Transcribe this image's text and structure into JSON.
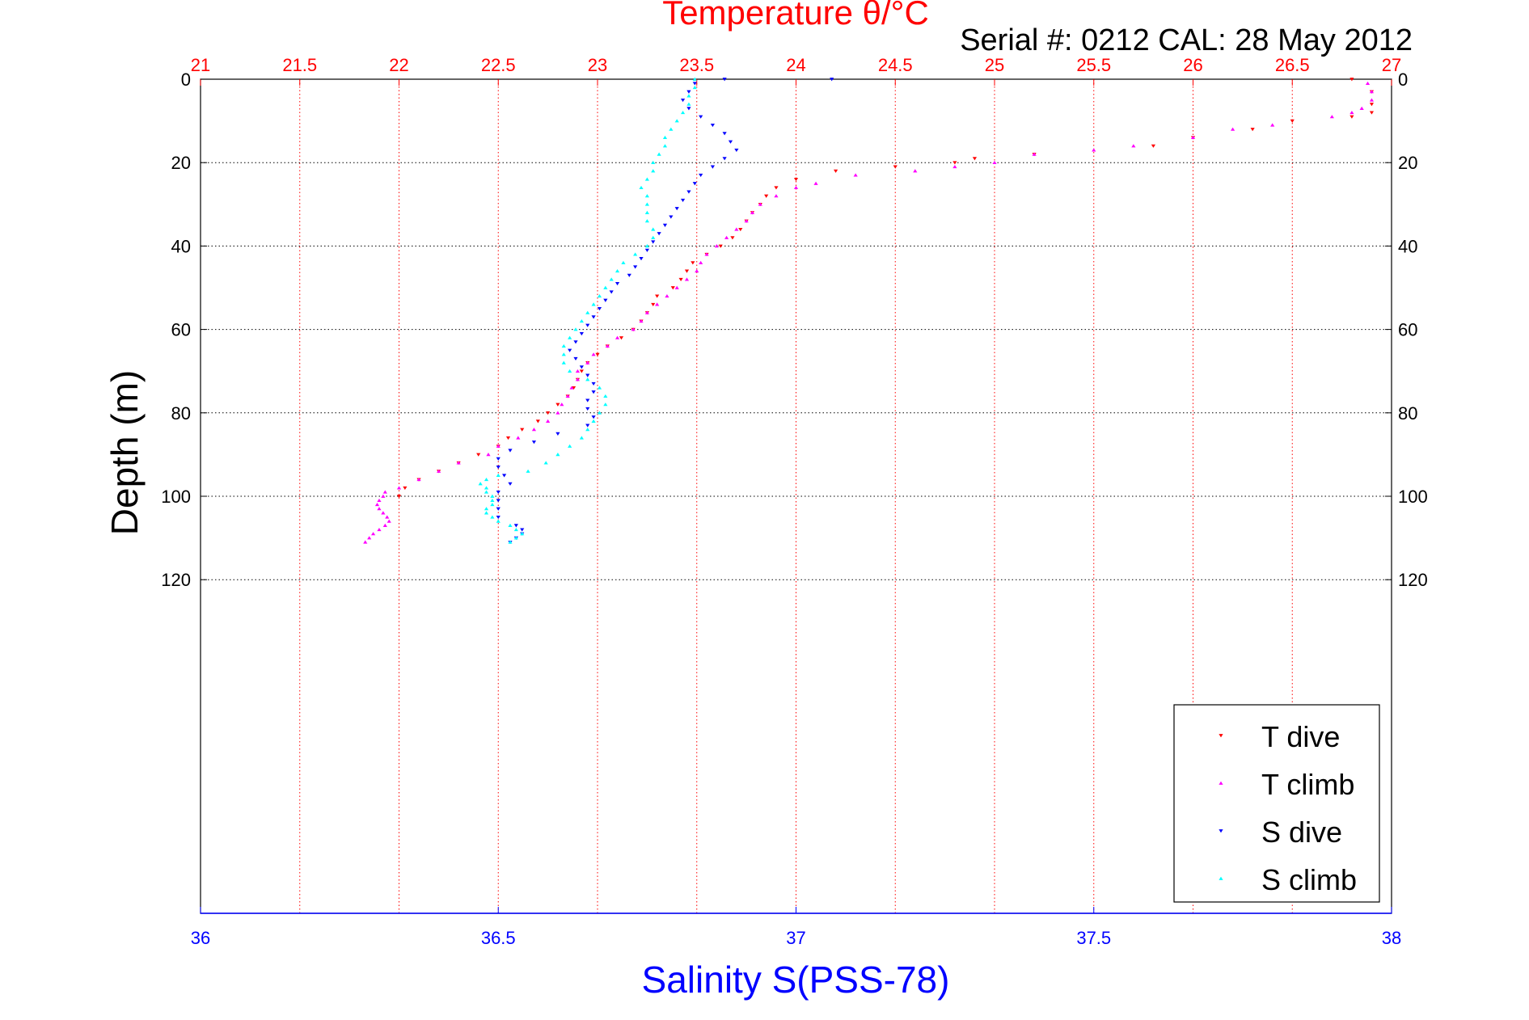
{
  "chart_data": {
    "type": "scatter",
    "title_top": "Temperature θ/°C",
    "subtitle": "Serial #: 0212  CAL: 28 May 2012",
    "xlabel_bottom": "Salinity S(PSS-78)",
    "ylabel": "Depth (m)",
    "x_top": {
      "min": 21,
      "max": 27,
      "ticks": [
        "21",
        "21.5",
        "22",
        "22.5",
        "23",
        "23.5",
        "24",
        "24.5",
        "25",
        "25.5",
        "26",
        "26.5",
        "27"
      ]
    },
    "x_bottom": {
      "min": 36,
      "max": 38,
      "ticks": [
        "36",
        "36.5",
        "37",
        "37.5",
        "38"
      ]
    },
    "y": {
      "min": 0,
      "max": 200,
      "reversed": true,
      "ticks": [
        "0",
        "20",
        "40",
        "60",
        "80",
        "100",
        "120"
      ]
    },
    "grid": "dotted",
    "legend_position": "bottom-right",
    "series": [
      {
        "name": "T dive",
        "axis": "top",
        "color": "#ff0000",
        "marker": "triangle-down",
        "points": [
          [
            26.8,
            0
          ],
          [
            26.9,
            3
          ],
          [
            26.9,
            6
          ],
          [
            26.9,
            8
          ],
          [
            26.8,
            9
          ],
          [
            26.5,
            10
          ],
          [
            26.3,
            12
          ],
          [
            26.0,
            14
          ],
          [
            25.8,
            16
          ],
          [
            25.2,
            18
          ],
          [
            24.9,
            19
          ],
          [
            24.8,
            20
          ],
          [
            24.5,
            21
          ],
          [
            24.2,
            22
          ],
          [
            24.0,
            24
          ],
          [
            23.9,
            26
          ],
          [
            23.85,
            28
          ],
          [
            23.82,
            30
          ],
          [
            23.78,
            32
          ],
          [
            23.75,
            34
          ],
          [
            23.72,
            36
          ],
          [
            23.68,
            38
          ],
          [
            23.62,
            40
          ],
          [
            23.55,
            42
          ],
          [
            23.48,
            44
          ],
          [
            23.45,
            46
          ],
          [
            23.42,
            48
          ],
          [
            23.38,
            50
          ],
          [
            23.3,
            52
          ],
          [
            23.28,
            54
          ],
          [
            23.25,
            56
          ],
          [
            23.22,
            58
          ],
          [
            23.18,
            60
          ],
          [
            23.12,
            62
          ],
          [
            23.05,
            64
          ],
          [
            23.0,
            66
          ],
          [
            22.95,
            68
          ],
          [
            22.92,
            70
          ],
          [
            22.9,
            72
          ],
          [
            22.88,
            74
          ],
          [
            22.85,
            76
          ],
          [
            22.8,
            78
          ],
          [
            22.75,
            80
          ],
          [
            22.7,
            82
          ],
          [
            22.62,
            84
          ],
          [
            22.55,
            86
          ],
          [
            22.5,
            88
          ],
          [
            22.4,
            90
          ],
          [
            22.3,
            92
          ],
          [
            22.2,
            94
          ],
          [
            22.1,
            96
          ],
          [
            22.03,
            98
          ],
          [
            22.0,
            100
          ]
        ]
      },
      {
        "name": "T climb",
        "axis": "top",
        "color": "#ff00ff",
        "marker": "triangle-up",
        "points": [
          [
            21.83,
            111
          ],
          [
            21.85,
            110
          ],
          [
            21.87,
            109
          ],
          [
            21.9,
            108
          ],
          [
            21.93,
            107
          ],
          [
            21.95,
            106
          ],
          [
            21.94,
            105
          ],
          [
            21.92,
            104
          ],
          [
            21.9,
            103
          ],
          [
            21.89,
            102
          ],
          [
            21.9,
            101
          ],
          [
            21.92,
            100
          ],
          [
            21.93,
            99
          ],
          [
            22.0,
            98
          ],
          [
            22.1,
            96
          ],
          [
            22.2,
            94
          ],
          [
            22.3,
            92
          ],
          [
            22.45,
            90
          ],
          [
            22.5,
            88
          ],
          [
            22.6,
            86
          ],
          [
            22.68,
            84
          ],
          [
            22.75,
            82
          ],
          [
            22.8,
            80
          ],
          [
            22.82,
            78
          ],
          [
            22.85,
            76
          ],
          [
            22.87,
            74
          ],
          [
            22.9,
            72
          ],
          [
            22.9,
            70
          ],
          [
            22.95,
            68
          ],
          [
            22.98,
            66
          ],
          [
            23.05,
            64
          ],
          [
            23.1,
            62
          ],
          [
            23.18,
            60
          ],
          [
            23.22,
            58
          ],
          [
            23.25,
            56
          ],
          [
            23.3,
            54
          ],
          [
            23.35,
            52
          ],
          [
            23.4,
            50
          ],
          [
            23.45,
            48
          ],
          [
            23.5,
            46
          ],
          [
            23.52,
            44
          ],
          [
            23.55,
            42
          ],
          [
            23.6,
            40
          ],
          [
            23.65,
            38
          ],
          [
            23.7,
            36
          ],
          [
            23.75,
            34
          ],
          [
            23.78,
            32
          ],
          [
            23.82,
            30
          ],
          [
            23.9,
            28
          ],
          [
            24.0,
            26
          ],
          [
            24.1,
            25
          ],
          [
            24.3,
            23
          ],
          [
            24.6,
            22
          ],
          [
            24.8,
            21
          ],
          [
            25.0,
            20
          ],
          [
            25.2,
            18
          ],
          [
            25.5,
            17
          ],
          [
            25.7,
            16
          ],
          [
            26.0,
            14
          ],
          [
            26.2,
            12
          ],
          [
            26.4,
            11
          ],
          [
            26.7,
            9
          ],
          [
            26.8,
            8
          ],
          [
            26.85,
            7
          ],
          [
            26.9,
            5
          ],
          [
            26.9,
            3
          ],
          [
            26.88,
            1
          ]
        ]
      },
      {
        "name": "S dive",
        "axis": "bottom",
        "color": "#0000ff",
        "marker": "triangle-down",
        "points": [
          [
            36.88,
            0
          ],
          [
            37.06,
            0
          ],
          [
            36.83,
            1
          ],
          [
            36.82,
            3
          ],
          [
            36.81,
            5
          ],
          [
            36.82,
            7
          ],
          [
            36.84,
            9
          ],
          [
            36.86,
            11
          ],
          [
            36.88,
            13
          ],
          [
            36.89,
            15
          ],
          [
            36.9,
            17
          ],
          [
            36.88,
            19
          ],
          [
            36.86,
            21
          ],
          [
            36.84,
            23
          ],
          [
            36.83,
            25
          ],
          [
            36.82,
            27
          ],
          [
            36.81,
            29
          ],
          [
            36.8,
            31
          ],
          [
            36.79,
            33
          ],
          [
            36.78,
            35
          ],
          [
            36.77,
            37
          ],
          [
            36.76,
            39
          ],
          [
            36.75,
            41
          ],
          [
            36.74,
            43
          ],
          [
            36.73,
            45
          ],
          [
            36.72,
            47
          ],
          [
            36.7,
            49
          ],
          [
            36.69,
            51
          ],
          [
            36.68,
            53
          ],
          [
            36.67,
            55
          ],
          [
            36.66,
            57
          ],
          [
            36.65,
            59
          ],
          [
            36.64,
            61
          ],
          [
            36.63,
            63
          ],
          [
            36.62,
            65
          ],
          [
            36.63,
            67
          ],
          [
            36.64,
            69
          ],
          [
            36.65,
            71
          ],
          [
            36.66,
            73
          ],
          [
            36.66,
            75
          ],
          [
            36.65,
            77
          ],
          [
            36.65,
            79
          ],
          [
            36.66,
            81
          ],
          [
            36.65,
            83
          ],
          [
            36.6,
            85
          ],
          [
            36.56,
            87
          ],
          [
            36.52,
            89
          ],
          [
            36.5,
            91
          ],
          [
            36.5,
            93
          ],
          [
            36.51,
            95
          ],
          [
            36.52,
            97
          ],
          [
            36.5,
            99
          ],
          [
            36.5,
            101
          ],
          [
            36.5,
            103
          ],
          [
            36.5,
            105
          ],
          [
            36.53,
            107
          ],
          [
            36.54,
            108
          ],
          [
            36.54,
            109
          ],
          [
            36.53,
            110
          ],
          [
            36.52,
            111
          ]
        ]
      },
      {
        "name": "S climb",
        "axis": "bottom",
        "color": "#00ffff",
        "marker": "triangle-up",
        "points": [
          [
            36.52,
            111
          ],
          [
            36.53,
            110
          ],
          [
            36.54,
            109
          ],
          [
            36.53,
            108
          ],
          [
            36.52,
            107
          ],
          [
            36.5,
            106
          ],
          [
            36.49,
            105
          ],
          [
            36.48,
            104
          ],
          [
            36.48,
            103
          ],
          [
            36.49,
            102
          ],
          [
            36.49,
            101
          ],
          [
            36.49,
            100
          ],
          [
            36.48,
            99
          ],
          [
            36.48,
            98
          ],
          [
            36.47,
            97
          ],
          [
            36.48,
            96
          ],
          [
            36.5,
            95
          ],
          [
            36.55,
            94
          ],
          [
            36.58,
            92
          ],
          [
            36.6,
            90
          ],
          [
            36.62,
            88
          ],
          [
            36.64,
            86
          ],
          [
            36.65,
            84
          ],
          [
            36.66,
            82
          ],
          [
            36.67,
            80
          ],
          [
            36.68,
            78
          ],
          [
            36.68,
            76
          ],
          [
            36.67,
            74
          ],
          [
            36.65,
            72
          ],
          [
            36.62,
            70
          ],
          [
            36.61,
            68
          ],
          [
            36.61,
            66
          ],
          [
            36.61,
            64
          ],
          [
            36.62,
            62
          ],
          [
            36.63,
            60
          ],
          [
            36.64,
            58
          ],
          [
            36.65,
            56
          ],
          [
            36.66,
            54
          ],
          [
            36.67,
            52
          ],
          [
            36.68,
            50
          ],
          [
            36.69,
            48
          ],
          [
            36.7,
            46
          ],
          [
            36.71,
            44
          ],
          [
            36.73,
            42
          ],
          [
            36.75,
            40
          ],
          [
            36.76,
            38
          ],
          [
            36.76,
            36
          ],
          [
            36.75,
            34
          ],
          [
            36.75,
            32
          ],
          [
            36.75,
            30
          ],
          [
            36.75,
            28
          ],
          [
            36.74,
            26
          ],
          [
            36.75,
            24
          ],
          [
            36.76,
            22
          ],
          [
            36.76,
            20
          ],
          [
            36.77,
            18
          ],
          [
            36.78,
            16
          ],
          [
            36.78,
            14
          ],
          [
            36.79,
            12
          ],
          [
            36.8,
            10
          ],
          [
            36.81,
            8
          ],
          [
            36.82,
            6
          ],
          [
            36.82,
            4
          ],
          [
            36.83,
            2
          ],
          [
            36.83,
            0
          ]
        ]
      }
    ]
  }
}
